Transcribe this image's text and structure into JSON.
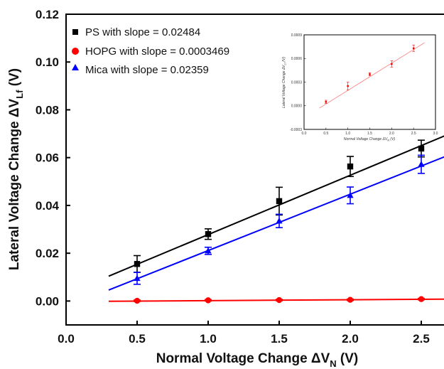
{
  "chart_data": [
    {
      "type": "scatter",
      "xlabel": "Normal Voltage Change ΔV",
      "xlabel_sub": "N",
      "xlabel_unit": " (V)",
      "ylabel": "Lateral Voltage Change ΔV",
      "ylabel_sub": "Lf",
      "ylabel_unit": " (V)",
      "xlim": [
        0.0,
        2.7
      ],
      "ylim": [
        -0.01,
        0.12
      ],
      "x_ticks": [
        "0.0",
        "0.5",
        "1.0",
        "1.5",
        "2.0",
        "2.5"
      ],
      "y_ticks": [
        "0.00",
        "0.02",
        "0.04",
        "0.06",
        "0.08",
        "0.10",
        "0.12"
      ],
      "legend_position": "top-left",
      "series": [
        {
          "name": "PS with slope = 0.02484",
          "marker": "square",
          "color": "#000000",
          "x": [
            0.5,
            1.0,
            1.5,
            2.0,
            2.5
          ],
          "y": [
            0.0155,
            0.028,
            0.0418,
            0.0563,
            0.0638
          ],
          "err": [
            0.0035,
            0.0022,
            0.0058,
            0.0042,
            0.0035
          ],
          "fit": {
            "x": [
              0.3,
              2.7
            ],
            "y": [
              0.0104,
              0.07
            ]
          }
        },
        {
          "name": "HOPG with slope = 0.0003469",
          "marker": "circle",
          "color": "#ff0000",
          "x": [
            0.5,
            1.0,
            1.5,
            2.0,
            2.5
          ],
          "y": [
            0.0001,
            0.0003,
            0.0004,
            0.0005,
            0.0008
          ],
          "err": [
            0.0003,
            0.0003,
            0.0003,
            0.0003,
            0.0003
          ],
          "fit": {
            "x": [
              0.3,
              2.7
            ],
            "y": [
              -0.0001,
              0.0008
            ]
          }
        },
        {
          "name": "Mica with slope = 0.02359",
          "marker": "triangle",
          "color": "#0000ff",
          "x": [
            0.5,
            1.0,
            1.5,
            2.0,
            2.5
          ],
          "y": [
            0.0095,
            0.021,
            0.0335,
            0.0442,
            0.0572
          ],
          "err": [
            0.0025,
            0.0015,
            0.0028,
            0.0035,
            0.0038
          ],
          "fit": {
            "x": [
              0.3,
              2.7
            ],
            "y": [
              0.0046,
              0.0612
            ]
          }
        }
      ]
    },
    {
      "type": "scatter",
      "role": "inset",
      "xlabel": "Normal Voltage Change ΔV",
      "xlabel_sub": "N",
      "xlabel_unit": " (V)",
      "ylabel": "Lateral Voltage Change ΔV",
      "ylabel_sub": "Lf",
      "ylabel_unit": " (V)",
      "xlim": [
        0.0,
        3.0
      ],
      "ylim": [
        -0.0003,
        0.0009
      ],
      "x_ticks": [
        "0.0",
        "0.5",
        "1.0",
        "1.5",
        "2.0",
        "2.5",
        "3.0"
      ],
      "y_ticks": [
        "-0.0003",
        "0.0000",
        "0.0003",
        "0.0006",
        "0.0009"
      ],
      "series": [
        {
          "name": "",
          "marker": "circle",
          "color": "#ff0000",
          "x": [
            0.5,
            1.0,
            1.5,
            2.0,
            2.5
          ],
          "y": [
            5e-05,
            0.00025,
            0.0004,
            0.00053,
            0.00073
          ],
          "err": [
            2e-05,
            5e-05,
            2e-05,
            4e-05,
            4e-05
          ],
          "fit": {
            "x": [
              0.35,
              2.75
            ],
            "y": [
              -3e-05,
              0.0008
            ]
          }
        }
      ]
    }
  ]
}
